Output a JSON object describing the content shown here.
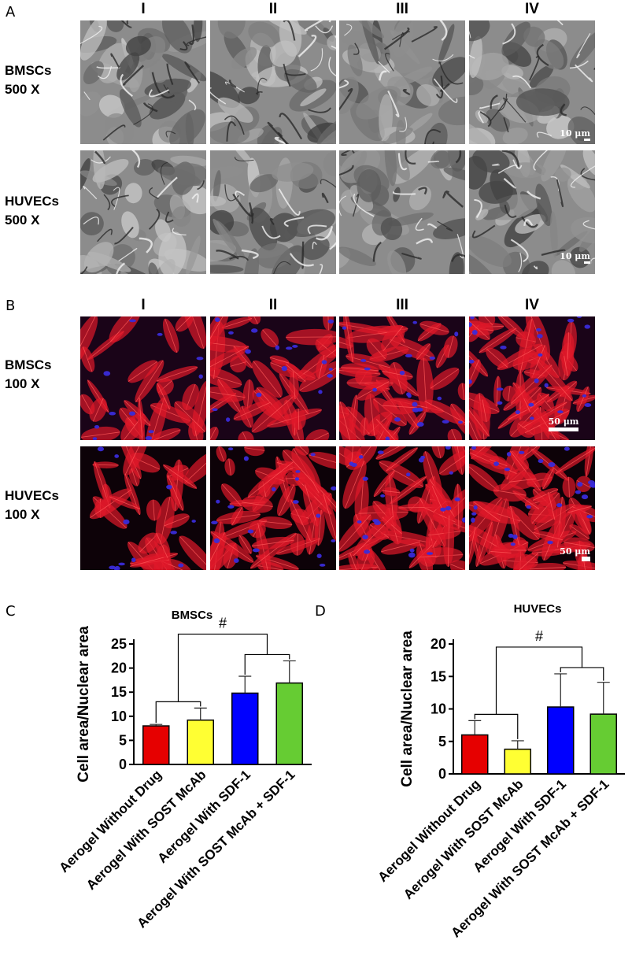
{
  "panels": {
    "A": {
      "label": "A",
      "columns": [
        "I",
        "II",
        "III",
        "IV"
      ],
      "rows": [
        {
          "name": "BMSCs",
          "mag": "500 X"
        },
        {
          "name": "HUVECs",
          "mag": "500 X"
        }
      ],
      "scale_label": "10 μm"
    },
    "B": {
      "label": "B",
      "columns": [
        "I",
        "II",
        "III",
        "IV"
      ],
      "rows": [
        {
          "name": "BMSCs",
          "mag": "100 X"
        },
        {
          "name": "HUVECs",
          "mag": "100 X"
        }
      ],
      "scale_label": "50 μm"
    },
    "C": {
      "label": "C"
    },
    "D": {
      "label": "D"
    }
  },
  "colors": {
    "sem_gray": "#8c8c8c",
    "actin_red": "#e0182a",
    "nucleus_blue": "#3a2bd8",
    "bar_red": "#e60000",
    "bar_yellow": "#ffff33",
    "bar_blue": "#0000ff",
    "bar_green": "#66cc33"
  },
  "chart_data": [
    {
      "type": "bar",
      "title": "BMSCs",
      "ylabel": "Cell area/Nuclear area",
      "xlabel": "",
      "ylim": [
        0,
        25
      ],
      "yticks": [
        0,
        5,
        10,
        15,
        20,
        25
      ],
      "categories": [
        "Aerogel Without Drug",
        "Aerogel With SOST McAb",
        "Aerogel With SDF-1",
        "Aerogel With SOST McAb + SDF-1"
      ],
      "values": [
        8.0,
        9.2,
        14.8,
        16.9
      ],
      "errors": [
        0.3,
        2.5,
        3.5,
        4.6
      ],
      "bar_colors": [
        "#e60000",
        "#ffff33",
        "#0000ff",
        "#66cc33"
      ],
      "significance": "#"
    },
    {
      "type": "bar",
      "title": "HUVECs",
      "ylabel": "Cell area/Nuclear area",
      "xlabel": "",
      "ylim": [
        0,
        20
      ],
      "yticks": [
        0,
        5,
        10,
        15,
        20
      ],
      "categories": [
        "Aerogel Without Drug",
        "Aerogel With SOST McAb",
        "Aerogel With SDF-1",
        "Aerogel With SOST McAb + SDF-1"
      ],
      "values": [
        6.0,
        3.8,
        10.3,
        9.2
      ],
      "errors": [
        2.2,
        1.3,
        5.1,
        4.9
      ],
      "bar_colors": [
        "#e60000",
        "#ffff33",
        "#0000ff",
        "#66cc33"
      ],
      "significance": "#"
    }
  ]
}
